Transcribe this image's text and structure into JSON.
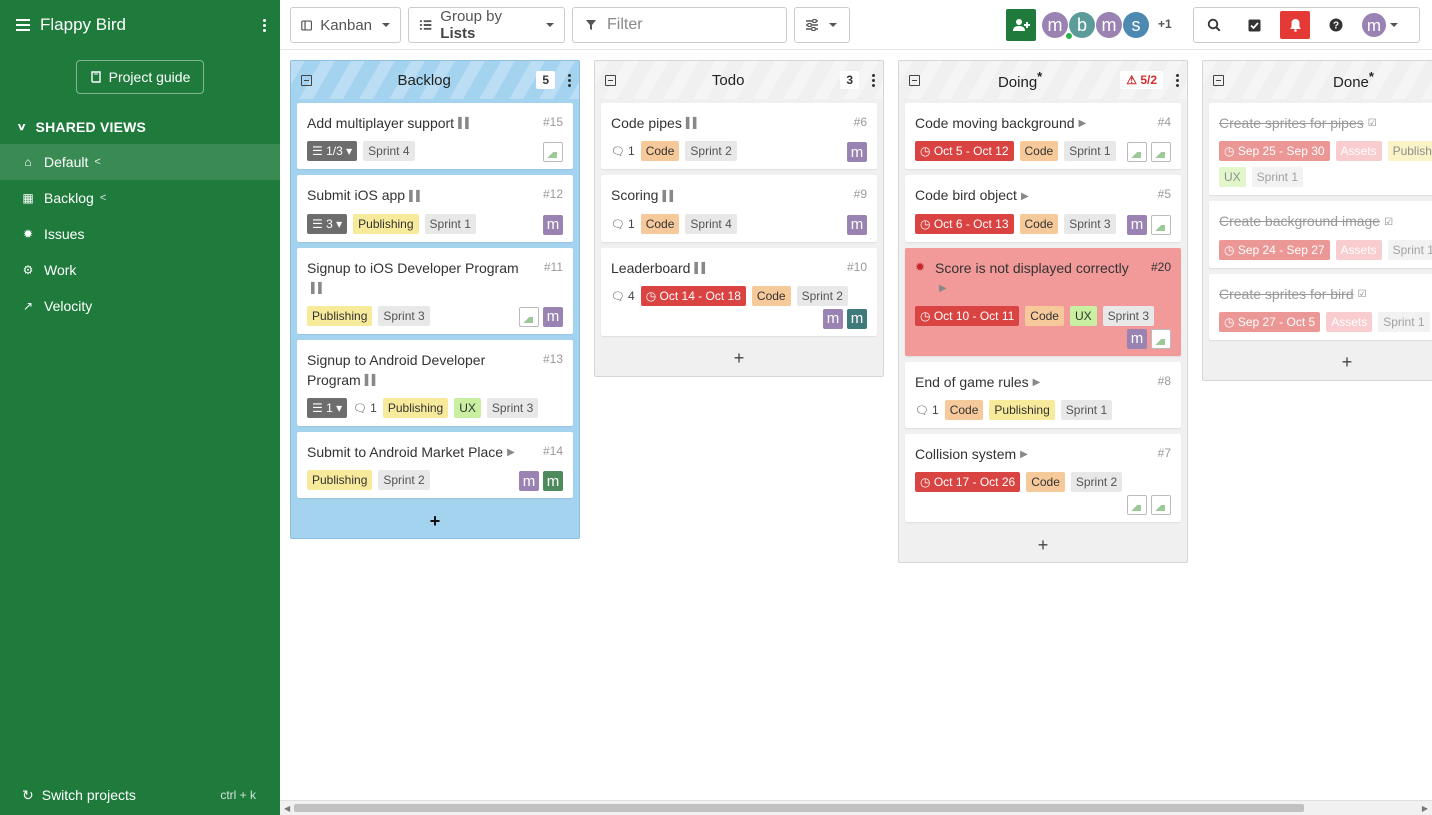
{
  "sidebar": {
    "project": "Flappy Bird",
    "guide_label": "Project guide",
    "section_label": "SHARED VIEWS",
    "items": [
      {
        "label": "Default",
        "icon": "home-icon",
        "shared": true,
        "active": true
      },
      {
        "label": "Backlog",
        "icon": "grid-icon",
        "shared": true
      },
      {
        "label": "Issues",
        "icon": "bug-icon"
      },
      {
        "label": "Work",
        "icon": "gear-icon"
      },
      {
        "label": "Velocity",
        "icon": "chart-line-icon"
      }
    ],
    "switch_label": "Switch projects",
    "switch_shortcut": "ctrl + k"
  },
  "toolbar": {
    "view_label": "Kanban",
    "group_prefix": "Group by",
    "group_value": "Lists",
    "filter_placeholder": "Filter",
    "more_users": "+1",
    "avatars": [
      {
        "letter": "m",
        "color": "#9a82b3",
        "online": true
      },
      {
        "letter": "b",
        "color": "#5b9c9a"
      },
      {
        "letter": "m",
        "color": "#9a82b3"
      },
      {
        "letter": "s",
        "color": "#4e89b1"
      }
    ],
    "user_avatar": "m"
  },
  "columns": [
    {
      "title": "Backlog",
      "count": "5",
      "style": "backlog",
      "cards": [
        {
          "title": "Add multiplayer support",
          "num": "#15",
          "status": "pause",
          "tags": [
            {
              "t": "check",
              "label": "1/3"
            },
            {
              "t": "sprint",
              "label": "Sprint 4"
            }
          ],
          "avatars": [
            "img"
          ]
        },
        {
          "title": "Submit iOS app",
          "num": "#12",
          "status": "pause",
          "tags": [
            {
              "t": "check",
              "label": "3"
            },
            {
              "t": "pub",
              "label": "Publishing"
            },
            {
              "t": "sprint",
              "label": "Sprint 1"
            }
          ],
          "avatars": [
            "m:#9a82b3"
          ]
        },
        {
          "title": "Signup to iOS Developer Program",
          "num": "#11",
          "status": "pause",
          "tags": [
            {
              "t": "pub",
              "label": "Publishing"
            },
            {
              "t": "sprint",
              "label": "Sprint 3"
            }
          ],
          "avatars": [
            "img",
            "m:#9a82b3"
          ]
        },
        {
          "title": "Signup to Android Developer Program",
          "num": "#13",
          "status": "pause",
          "tags": [
            {
              "t": "check",
              "label": "1"
            },
            {
              "t": "comments",
              "label": "1"
            },
            {
              "t": "pub",
              "label": "Publishing"
            },
            {
              "t": "ux",
              "label": "UX"
            },
            {
              "t": "sprint",
              "label": "Sprint 3"
            }
          ],
          "avatars": []
        },
        {
          "title": "Submit to Android Market Place",
          "num": "#14",
          "status": "play",
          "tags": [
            {
              "t": "pub",
              "label": "Publishing"
            },
            {
              "t": "sprint",
              "label": "Sprint 2"
            }
          ],
          "avatars": [
            "m:#9a82b3",
            "m:#4e8a5c"
          ]
        }
      ]
    },
    {
      "title": "Todo",
      "count": "3",
      "cards": [
        {
          "title": "Code pipes",
          "num": "#6",
          "status": "pause",
          "tags": [
            {
              "t": "comments",
              "label": "1"
            },
            {
              "t": "code",
              "label": "Code"
            },
            {
              "t": "sprint",
              "label": "Sprint 2"
            }
          ],
          "avatars": [
            "m:#9a82b3"
          ]
        },
        {
          "title": "Scoring",
          "num": "#9",
          "status": "pause",
          "tags": [
            {
              "t": "comments",
              "label": "1"
            },
            {
              "t": "code",
              "label": "Code"
            },
            {
              "t": "sprint",
              "label": "Sprint 4"
            }
          ],
          "avatars": [
            "m:#9a82b3"
          ]
        },
        {
          "title": "Leaderboard",
          "num": "#10",
          "status": "pause",
          "tags": [
            {
              "t": "comments",
              "label": "4"
            },
            {
              "t": "date",
              "label": "Oct 14 - Oct 18"
            },
            {
              "t": "code",
              "label": "Code"
            },
            {
              "t": "sprint",
              "label": "Sprint 2"
            }
          ],
          "avatars": [
            "m:#9a82b3",
            "m:#3f7a7a"
          ],
          "tall": true
        }
      ]
    },
    {
      "title": "Doing",
      "count": "5/2",
      "mandatory": true,
      "warn": true,
      "cards": [
        {
          "title": "Code moving background",
          "num": "#4",
          "status": "play",
          "tags": [
            {
              "t": "date",
              "label": "Oct 5 - Oct 12"
            },
            {
              "t": "code",
              "label": "Code"
            },
            {
              "t": "sprint",
              "label": "Sprint 1"
            }
          ],
          "avatars": [
            "img",
            "img"
          ]
        },
        {
          "title": "Code bird object",
          "num": "#5",
          "status": "play",
          "tags": [
            {
              "t": "date",
              "label": "Oct 6 - Oct 13"
            },
            {
              "t": "code",
              "label": "Code"
            },
            {
              "t": "sprint",
              "label": "Sprint 3"
            }
          ],
          "avatars": [
            "m:#9a82b3",
            "img"
          ]
        },
        {
          "title": "Score is not displayed correctly",
          "num": "#20",
          "status": "play",
          "bug": true,
          "tags": [
            {
              "t": "date",
              "label": "Oct 10 - Oct 11"
            },
            {
              "t": "code",
              "label": "Code"
            },
            {
              "t": "ux",
              "label": "UX"
            },
            {
              "t": "sprint",
              "label": "Sprint 3"
            }
          ],
          "avatars": [
            "m:#9a82b3",
            "img"
          ],
          "tall": true
        },
        {
          "title": "End of game rules",
          "num": "#8",
          "status": "play",
          "tags": [
            {
              "t": "comments",
              "label": "1"
            },
            {
              "t": "code",
              "label": "Code"
            },
            {
              "t": "pub",
              "label": "Publishing"
            },
            {
              "t": "sprint",
              "label": "Sprint 1"
            }
          ],
          "avatars": []
        },
        {
          "title": "Collision system",
          "num": "#7",
          "status": "play",
          "tags": [
            {
              "t": "date",
              "label": "Oct 17 - Oct 26"
            },
            {
              "t": "code",
              "label": "Code"
            },
            {
              "t": "sprint",
              "label": "Sprint 2"
            }
          ],
          "avatars": [
            "img",
            "img"
          ],
          "tall": true
        }
      ]
    },
    {
      "title": "Done",
      "count": "",
      "mandatory": true,
      "cards": [
        {
          "title": "Create sprites for pipes",
          "status": "done",
          "done": true,
          "tags": [
            {
              "t": "date",
              "label": "Sep 25 - Sep 30"
            },
            {
              "t": "assets",
              "label": "Assets"
            },
            {
              "t": "pub",
              "label": "Publishing"
            },
            {
              "t": "ux",
              "label": "UX"
            },
            {
              "t": "sprint",
              "label": "Sprint 1"
            }
          ],
          "avatars": []
        },
        {
          "title": "Create background image",
          "status": "done",
          "done": true,
          "tags": [
            {
              "t": "date",
              "label": "Sep 24 - Sep 27"
            },
            {
              "t": "assets",
              "label": "Assets"
            },
            {
              "t": "sprint",
              "label": "Sprint 1"
            }
          ],
          "avatars": []
        },
        {
          "title": "Create sprites for bird",
          "status": "done",
          "done": true,
          "tags": [
            {
              "t": "date",
              "label": "Sep 27 - Oct 5"
            },
            {
              "t": "assets",
              "label": "Assets"
            },
            {
              "t": "sprint",
              "label": "Sprint 1"
            }
          ],
          "avatars": []
        }
      ]
    }
  ]
}
